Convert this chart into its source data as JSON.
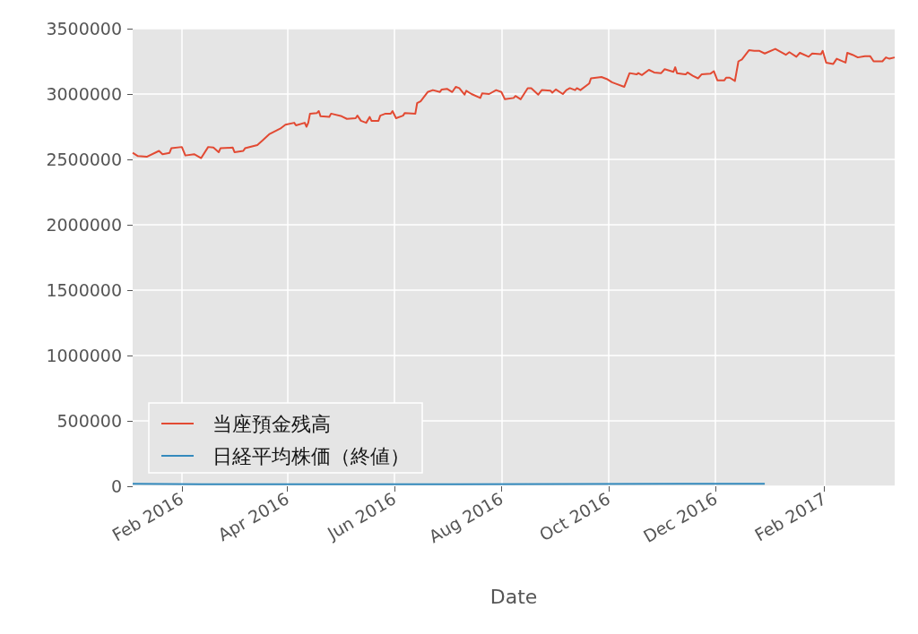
{
  "chart_data": {
    "type": "line",
    "xlabel": "Date",
    "xlim": [
      "2016-01-04",
      "2017-03-13"
    ],
    "xticks": [
      {
        "value": "2016-02-01",
        "label": "Feb 2016"
      },
      {
        "value": "2016-04-01",
        "label": "Apr 2016"
      },
      {
        "value": "2016-06-01",
        "label": "Jun 2016"
      },
      {
        "value": "2016-08-01",
        "label": "Aug 2016"
      },
      {
        "value": "2016-10-01",
        "label": "Oct 2016"
      },
      {
        "value": "2016-12-01",
        "label": "Dec 2016"
      },
      {
        "value": "2017-02-01",
        "label": "Feb 2017"
      }
    ],
    "ylim": [
      0,
      3500000
    ],
    "yticks": [
      0,
      500000,
      1000000,
      1500000,
      2000000,
      2500000,
      3000000,
      3500000
    ],
    "grid": true,
    "legend": "bottom left",
    "series": [
      {
        "name": "当座預金残高",
        "color": "#e24a33",
        "x": [
          "2016-01-04",
          "2016-01-07",
          "2016-01-12",
          "2016-01-19",
          "2016-01-21",
          "2016-01-25",
          "2016-01-26",
          "2016-02-01",
          "2016-02-03",
          "2016-02-08",
          "2016-02-12",
          "2016-02-16",
          "2016-02-19",
          "2016-02-22",
          "2016-02-23",
          "2016-03-01",
          "2016-03-02",
          "2016-03-07",
          "2016-03-08",
          "2016-03-15",
          "2016-03-18",
          "2016-03-22",
          "2016-03-28",
          "2016-03-31",
          "2016-04-05",
          "2016-04-06",
          "2016-04-11",
          "2016-04-12",
          "2016-04-13",
          "2016-04-14",
          "2016-04-18",
          "2016-04-19",
          "2016-04-20",
          "2016-04-25",
          "2016-04-26",
          "2016-05-02",
          "2016-05-05",
          "2016-05-10",
          "2016-05-11",
          "2016-05-13",
          "2016-05-16",
          "2016-05-18",
          "2016-05-19",
          "2016-05-23",
          "2016-05-24",
          "2016-05-27",
          "2016-05-30",
          "2016-05-31",
          "2016-06-02",
          "2016-06-06",
          "2016-06-07",
          "2016-06-13",
          "2016-06-14",
          "2016-06-16",
          "2016-06-20",
          "2016-06-23",
          "2016-06-27",
          "2016-06-28",
          "2016-07-01",
          "2016-07-04",
          "2016-07-06",
          "2016-07-08",
          "2016-07-11",
          "2016-07-12",
          "2016-07-15",
          "2016-07-20",
          "2016-07-21",
          "2016-07-25",
          "2016-07-29",
          "2016-08-01",
          "2016-08-03",
          "2016-08-08",
          "2016-08-09",
          "2016-08-12",
          "2016-08-16",
          "2016-08-18",
          "2016-08-22",
          "2016-08-24",
          "2016-08-29",
          "2016-08-30",
          "2016-09-01",
          "2016-09-05",
          "2016-09-07",
          "2016-09-09",
          "2016-09-12",
          "2016-09-13",
          "2016-09-15",
          "2016-09-20",
          "2016-09-21",
          "2016-09-27",
          "2016-09-30",
          "2016-10-03",
          "2016-10-05",
          "2016-10-10",
          "2016-10-13",
          "2016-10-17",
          "2016-10-18",
          "2016-10-20",
          "2016-10-24",
          "2016-10-27",
          "2016-10-31",
          "2016-11-02",
          "2016-11-07",
          "2016-11-08",
          "2016-11-09",
          "2016-11-14",
          "2016-11-15",
          "2016-11-18",
          "2016-11-21",
          "2016-11-23",
          "2016-11-28",
          "2016-11-30",
          "2016-12-02",
          "2016-12-06",
          "2016-12-07",
          "2016-12-09",
          "2016-12-12",
          "2016-12-14",
          "2016-12-16",
          "2016-12-20",
          "2016-12-23",
          "2016-12-26",
          "2016-12-29",
          "2017-01-04",
          "2017-01-10",
          "2017-01-12",
          "2017-01-16",
          "2017-01-18",
          "2017-01-23",
          "2017-01-25",
          "2017-01-30",
          "2017-01-31",
          "2017-02-02",
          "2017-02-06",
          "2017-02-08",
          "2017-02-13",
          "2017-02-14",
          "2017-02-17",
          "2017-02-20",
          "2017-02-24",
          "2017-02-27",
          "2017-03-01",
          "2017-03-06",
          "2017-03-08",
          "2017-03-10",
          "2017-03-13"
        ],
        "values": [
          2550000,
          2525000,
          2520000,
          2565000,
          2540000,
          2550000,
          2585000,
          2595000,
          2530000,
          2540000,
          2510000,
          2595000,
          2590000,
          2555000,
          2585000,
          2590000,
          2555000,
          2565000,
          2585000,
          2610000,
          2645000,
          2695000,
          2735000,
          2765000,
          2780000,
          2760000,
          2780000,
          2750000,
          2780000,
          2850000,
          2855000,
          2870000,
          2830000,
          2825000,
          2850000,
          2830000,
          2810000,
          2815000,
          2835000,
          2795000,
          2780000,
          2825000,
          2795000,
          2795000,
          2835000,
          2850000,
          2850000,
          2870000,
          2815000,
          2835000,
          2855000,
          2850000,
          2930000,
          2945000,
          3015000,
          3030000,
          3015000,
          3035000,
          3040000,
          3015000,
          3055000,
          3045000,
          2995000,
          3025000,
          3000000,
          2970000,
          3005000,
          3000000,
          3030000,
          3015000,
          2960000,
          2970000,
          2985000,
          2960000,
          3045000,
          3045000,
          2995000,
          3030000,
          3025000,
          3010000,
          3035000,
          3000000,
          3030000,
          3045000,
          3030000,
          3045000,
          3030000,
          3080000,
          3120000,
          3130000,
          3115000,
          3090000,
          3080000,
          3055000,
          3160000,
          3150000,
          3160000,
          3145000,
          3185000,
          3165000,
          3160000,
          3190000,
          3170000,
          3205000,
          3160000,
          3150000,
          3165000,
          3140000,
          3120000,
          3150000,
          3155000,
          3175000,
          3105000,
          3105000,
          3125000,
          3125000,
          3100000,
          3250000,
          3265000,
          3335000,
          3330000,
          3330000,
          3310000,
          3345000,
          3300000,
          3320000,
          3285000,
          3315000,
          3285000,
          3310000,
          3305000,
          3330000,
          3240000,
          3230000,
          3270000,
          3240000,
          3315000,
          3300000,
          3280000,
          3290000,
          3290000,
          3250000,
          3250000,
          3280000,
          3270000,
          3280000
        ]
      },
      {
        "name": "日経平均株価（終値）",
        "color": "#348abd",
        "x": [
          "2016-01-04",
          "2016-02-12",
          "2016-06-24",
          "2016-12-29"
        ],
        "values": [
          18000,
          15000,
          15000,
          19000
        ]
      }
    ]
  }
}
